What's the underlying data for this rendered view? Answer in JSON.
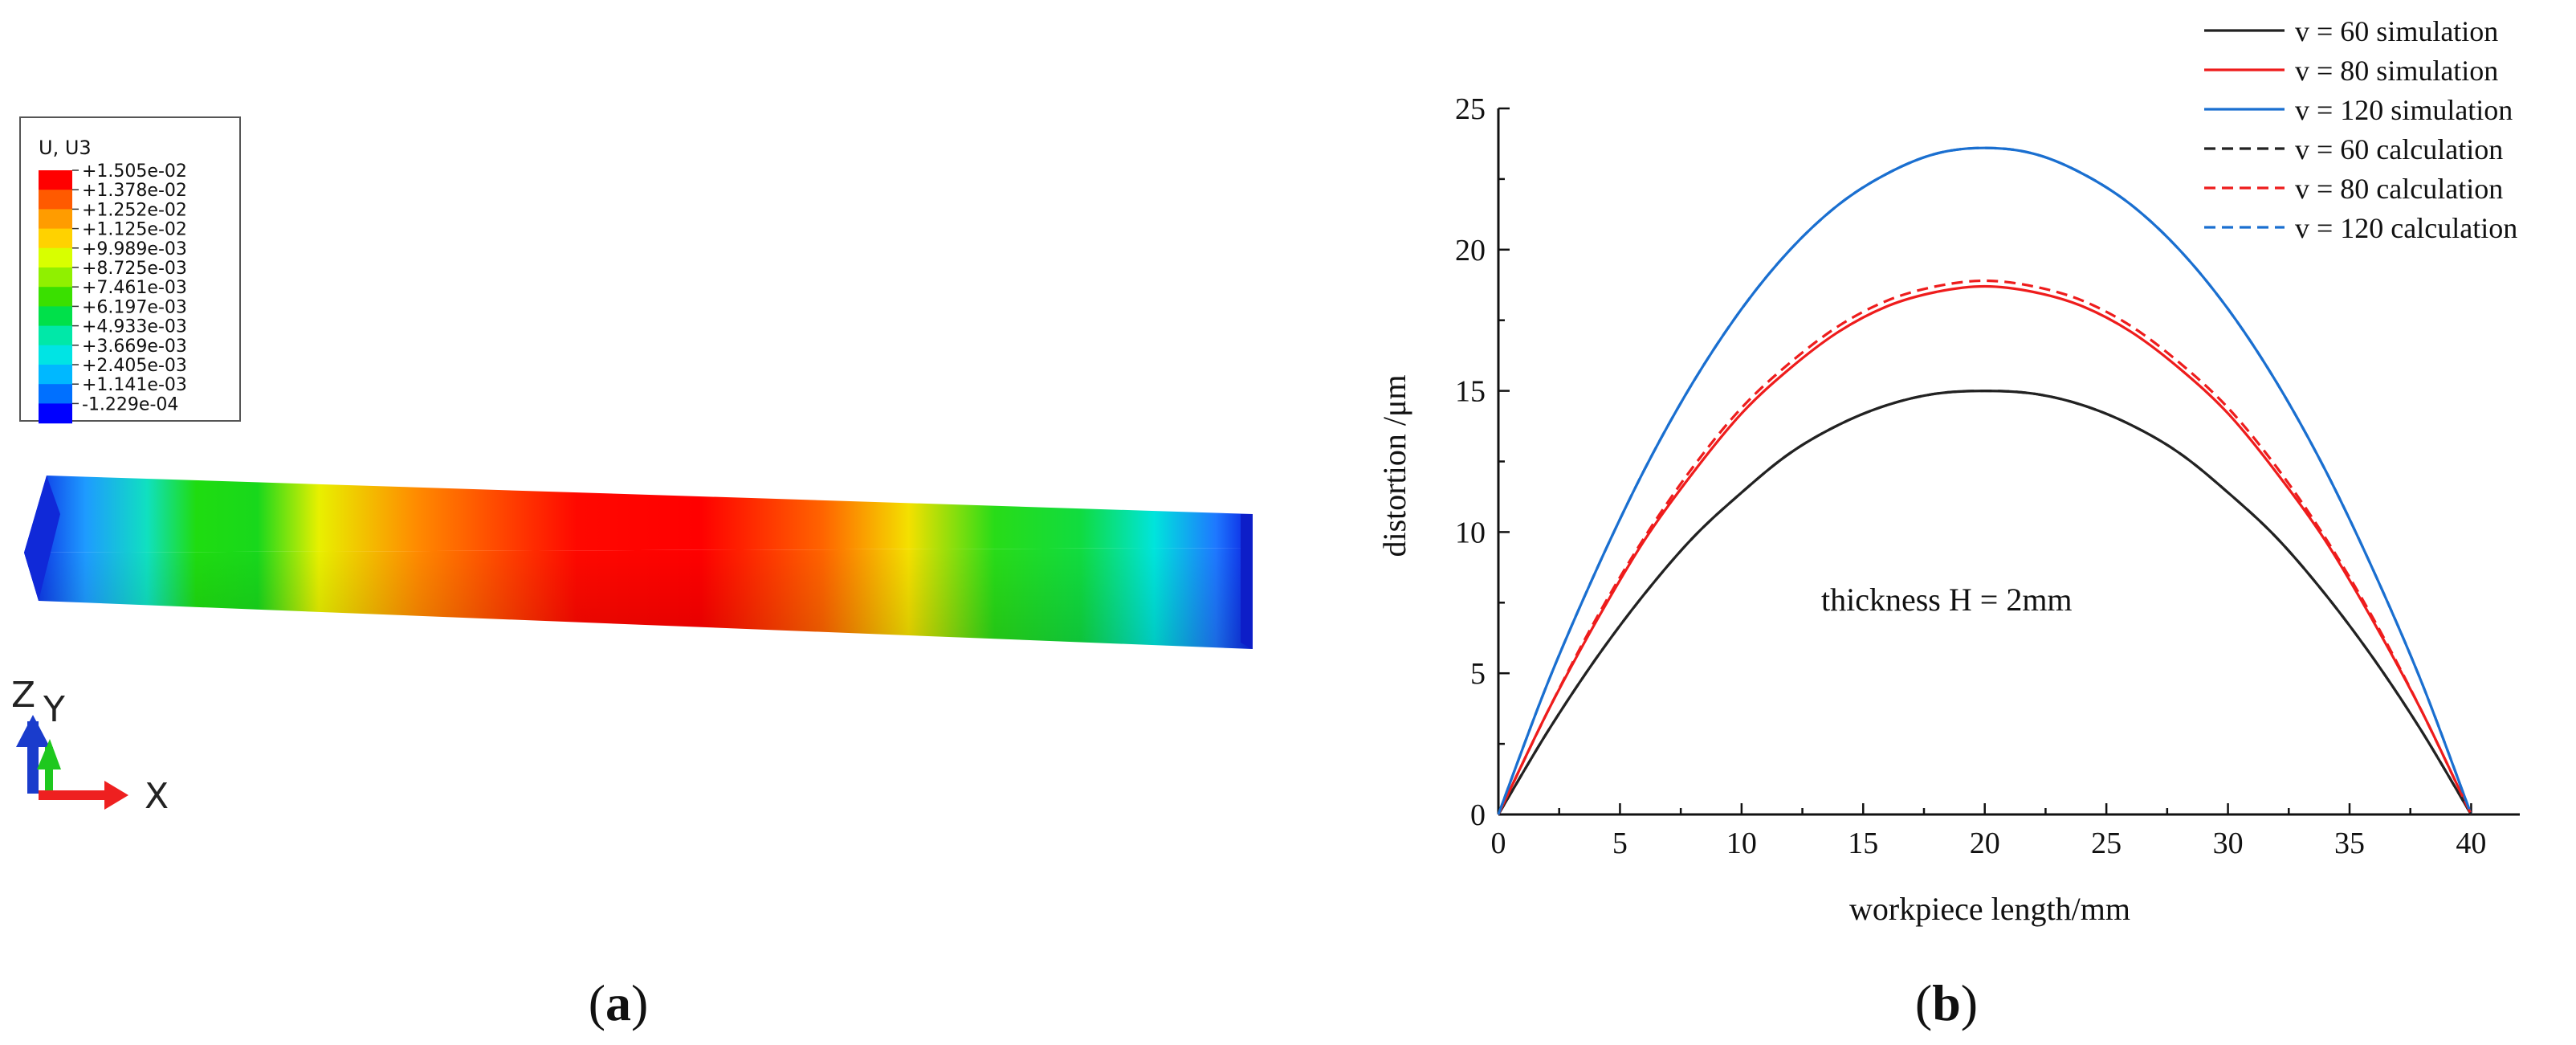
{
  "panel_a": {
    "caption": "a",
    "legend": {
      "title": "U, U3",
      "entries": [
        "+1.505e-02",
        "+1.378e-02",
        "+1.252e-02",
        "+1.125e-02",
        "+9.989e-03",
        "+8.725e-03",
        "+7.461e-03",
        "+6.197e-03",
        "+4.933e-03",
        "+3.669e-03",
        "+2.405e-03",
        "+1.141e-03",
        "-1.229e-04"
      ],
      "colors": [
        "#ff0000",
        "#ff5a00",
        "#ff9c00",
        "#ffd200",
        "#d8ff00",
        "#90f000",
        "#3ae000",
        "#00e04a",
        "#00e8a8",
        "#00e4e4",
        "#00b8ff",
        "#0070ff",
        "#0000ff"
      ]
    },
    "beam_gradient": [
      {
        "t": 0.0,
        "color": "#0a1ee0"
      },
      {
        "t": 0.05,
        "color": "#1e9bff"
      },
      {
        "t": 0.1,
        "color": "#10e0c0"
      },
      {
        "t": 0.14,
        "color": "#1fdc10"
      },
      {
        "t": 0.19,
        "color": "#18d81c"
      },
      {
        "t": 0.24,
        "color": "#e8f000"
      },
      {
        "t": 0.32,
        "color": "#ff8a00"
      },
      {
        "t": 0.45,
        "color": "#ff0800"
      },
      {
        "t": 0.55,
        "color": "#ff0000"
      },
      {
        "t": 0.65,
        "color": "#ff6400"
      },
      {
        "t": 0.72,
        "color": "#f4e000"
      },
      {
        "t": 0.79,
        "color": "#28dc18"
      },
      {
        "t": 0.86,
        "color": "#10dc40"
      },
      {
        "t": 0.92,
        "color": "#00e4dc"
      },
      {
        "t": 0.97,
        "color": "#1e78ff"
      },
      {
        "t": 1.0,
        "color": "#0a1ee0"
      }
    ],
    "triad": {
      "z": "Z",
      "y": "Y",
      "x": "X",
      "z_color": "#1a3ccc",
      "y_color": "#1ec81e",
      "x_color": "#ee2020"
    }
  },
  "panel_b": {
    "caption": "b",
    "annotation": "thickness  H = 2mm"
  },
  "chart_data": {
    "type": "line",
    "xlabel": "workpiece length/mm",
    "ylabel": "distortion /μm",
    "xlim": [
      0,
      42
    ],
    "ylim": [
      0,
      25
    ],
    "xticks": [
      0,
      5,
      10,
      15,
      20,
      25,
      30,
      35,
      40
    ],
    "yticks": [
      0,
      5,
      10,
      15,
      20,
      25
    ],
    "grid": false,
    "legend_position": "top-right",
    "series": [
      {
        "name": "v = 60 simulation",
        "color": "#222222",
        "dash": "solid",
        "x": [
          0,
          2,
          4,
          6,
          8,
          10,
          12,
          14,
          16,
          18,
          20,
          22,
          24,
          26,
          28,
          30,
          32,
          34,
          36,
          38,
          40
        ],
        "y": [
          0,
          2.9,
          5.5,
          7.8,
          9.8,
          11.4,
          12.8,
          13.8,
          14.5,
          14.9,
          15.0,
          14.9,
          14.5,
          13.8,
          12.8,
          11.4,
          9.8,
          7.8,
          5.5,
          2.9,
          0
        ]
      },
      {
        "name": "v = 80 simulation",
        "color": "#ee1c1c",
        "dash": "solid",
        "x": [
          0,
          2,
          4,
          6,
          8,
          10,
          12,
          14,
          16,
          18,
          20,
          22,
          24,
          26,
          28,
          30,
          32,
          34,
          36,
          38,
          40
        ],
        "y": [
          0,
          3.6,
          6.8,
          9.7,
          12.1,
          14.2,
          15.8,
          17.1,
          18.0,
          18.5,
          18.7,
          18.5,
          18.0,
          17.1,
          15.8,
          14.2,
          12.1,
          9.7,
          6.8,
          3.6,
          0
        ]
      },
      {
        "name": "v = 120 simulation",
        "color": "#1a6fd0",
        "dash": "solid",
        "x": [
          0,
          2,
          4,
          6,
          8,
          10,
          12,
          14,
          16,
          18,
          20,
          22,
          24,
          26,
          28,
          30,
          32,
          34,
          36,
          38,
          40
        ],
        "y": [
          0,
          4.6,
          8.6,
          12.2,
          15.3,
          17.9,
          20.0,
          21.6,
          22.7,
          23.4,
          23.6,
          23.4,
          22.7,
          21.6,
          20.0,
          17.9,
          15.3,
          12.2,
          8.6,
          4.6,
          0
        ]
      },
      {
        "name": "v = 60 calculation",
        "color": "#222222",
        "dash": "dashed",
        "x": [
          0,
          2,
          4,
          6,
          8,
          10,
          12,
          14,
          16,
          18,
          20,
          22,
          24,
          26,
          28,
          30,
          32,
          34,
          36,
          38,
          40
        ],
        "y": [
          0,
          2.9,
          5.5,
          7.8,
          9.8,
          11.4,
          12.8,
          13.8,
          14.5,
          14.9,
          15.0,
          14.9,
          14.5,
          13.8,
          12.8,
          11.4,
          9.8,
          7.8,
          5.5,
          2.9,
          0
        ]
      },
      {
        "name": "v = 80 calculation",
        "color": "#ee1c1c",
        "dash": "dashed",
        "x": [
          0,
          2,
          4,
          6,
          8,
          10,
          12,
          14,
          16,
          18,
          20,
          22,
          24,
          26,
          28,
          30,
          32,
          34,
          36,
          38,
          40
        ],
        "y": [
          0,
          3.6,
          6.9,
          9.8,
          12.3,
          14.4,
          16.0,
          17.3,
          18.2,
          18.7,
          18.9,
          18.7,
          18.2,
          17.3,
          16.0,
          14.4,
          12.3,
          9.8,
          6.9,
          3.6,
          0
        ]
      },
      {
        "name": "v = 120 calculation",
        "color": "#1a6fd0",
        "dash": "dashed",
        "x": [
          0,
          2,
          4,
          6,
          8,
          10,
          12,
          14,
          16,
          18,
          20,
          22,
          24,
          26,
          28,
          30,
          32,
          34,
          36,
          38,
          40
        ],
        "y": [
          0,
          4.6,
          8.6,
          12.2,
          15.3,
          17.9,
          20.0,
          21.6,
          22.7,
          23.4,
          23.6,
          23.4,
          22.7,
          21.6,
          20.0,
          17.9,
          15.3,
          12.2,
          8.6,
          4.6,
          0
        ]
      }
    ]
  }
}
